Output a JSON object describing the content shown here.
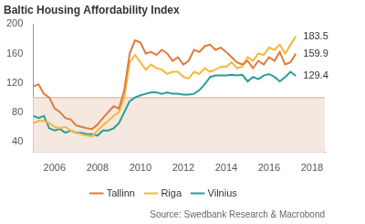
{
  "chart_data": {
    "type": "line",
    "title": "Baltic Housing Affordability Index",
    "subtitle": "Source: Swedbank Research & Macrobond",
    "x": [
      2005.0,
      2005.25,
      2005.5,
      2005.75,
      2006.0,
      2006.25,
      2006.5,
      2006.75,
      2007.0,
      2007.25,
      2007.5,
      2007.75,
      2008.0,
      2008.25,
      2008.5,
      2008.75,
      2009.0,
      2009.25,
      2009.5,
      2009.75,
      2010.0,
      2010.25,
      2010.5,
      2010.75,
      2011.0,
      2011.25,
      2011.5,
      2011.75,
      2012.0,
      2012.25,
      2012.5,
      2012.75,
      2013.0,
      2013.25,
      2013.5,
      2013.75,
      2014.0,
      2014.25,
      2014.5,
      2014.75,
      2015.0,
      2015.25,
      2015.5,
      2015.75,
      2016.0,
      2016.25,
      2016.5,
      2016.75,
      2017.0,
      2017.25
    ],
    "series": [
      {
        "name": "Tallinn",
        "color": "#e07b39",
        "values": [
          115,
          118,
          105,
          100,
          85,
          80,
          72,
          70,
          62,
          60,
          58,
          57,
          63,
          72,
          80,
          88,
          85,
          110,
          160,
          178,
          175,
          160,
          162,
          158,
          165,
          160,
          150,
          155,
          145,
          150,
          165,
          162,
          170,
          172,
          165,
          168,
          162,
          155,
          148,
          145,
          150,
          140,
          150,
          145,
          155,
          150,
          162,
          145,
          148,
          159.9
        ],
        "value_labels": [
          null,
          null,
          null,
          null,
          null,
          null,
          null,
          null,
          null,
          null,
          null,
          null,
          null,
          null,
          null,
          null,
          null,
          null,
          null,
          null,
          null,
          null,
          null,
          null,
          null,
          null,
          null,
          null,
          null,
          null,
          null,
          null,
          null,
          null,
          null,
          null,
          null,
          null,
          null,
          null,
          null,
          null,
          null,
          null,
          null,
          null,
          null,
          null,
          null,
          "159.9"
        ]
      },
      {
        "name": "Riga",
        "color": "#f5b83c",
        "values": [
          65,
          68,
          68,
          65,
          60,
          58,
          60,
          55,
          52,
          50,
          48,
          47,
          55,
          62,
          68,
          75,
          80,
          100,
          148,
          158,
          148,
          138,
          145,
          140,
          138,
          132,
          135,
          135,
          128,
          126,
          135,
          132,
          140,
          135,
          138,
          142,
          142,
          148,
          140,
          142,
          155,
          150,
          160,
          158,
          168,
          165,
          172,
          160,
          172,
          183.5
        ],
        "value_labels": [
          null,
          null,
          null,
          null,
          null,
          null,
          null,
          null,
          null,
          null,
          null,
          null,
          null,
          null,
          null,
          null,
          null,
          null,
          null,
          null,
          null,
          null,
          null,
          null,
          null,
          null,
          null,
          null,
          null,
          null,
          null,
          null,
          null,
          null,
          null,
          null,
          null,
          null,
          null,
          null,
          null,
          null,
          null,
          null,
          null,
          null,
          null,
          null,
          null,
          "183.5"
        ]
      },
      {
        "name": "Vilnius",
        "color": "#2a9d9a",
        "values": [
          75,
          72,
          75,
          58,
          55,
          57,
          52,
          55,
          52,
          52,
          50,
          50,
          48,
          55,
          55,
          58,
          65,
          80,
          95,
          100,
          103,
          105,
          107,
          107,
          105,
          107,
          105,
          105,
          104,
          104,
          105,
          110,
          118,
          128,
          130,
          130,
          130,
          131,
          130,
          131,
          122,
          128,
          125,
          130,
          132,
          128,
          122,
          128,
          135,
          129.4
        ],
        "value_labels": [
          null,
          null,
          null,
          null,
          null,
          null,
          null,
          null,
          null,
          null,
          null,
          null,
          null,
          null,
          null,
          null,
          null,
          null,
          null,
          null,
          null,
          null,
          null,
          null,
          null,
          null,
          null,
          null,
          null,
          null,
          null,
          null,
          null,
          null,
          null,
          null,
          null,
          null,
          null,
          null,
          null,
          null,
          null,
          null,
          null,
          null,
          null,
          null,
          null,
          "129.4"
        ]
      }
    ],
    "xlim": [
      2005,
      2018.6
    ],
    "xticks": [
      2006,
      2008,
      2010,
      2012,
      2014,
      2016,
      2018
    ],
    "ylim": [
      25,
      200
    ],
    "yticks": [
      40,
      80,
      120,
      160,
      200
    ],
    "shaded_band": [
      25,
      100
    ],
    "grid": false,
    "legend": "bottom"
  }
}
